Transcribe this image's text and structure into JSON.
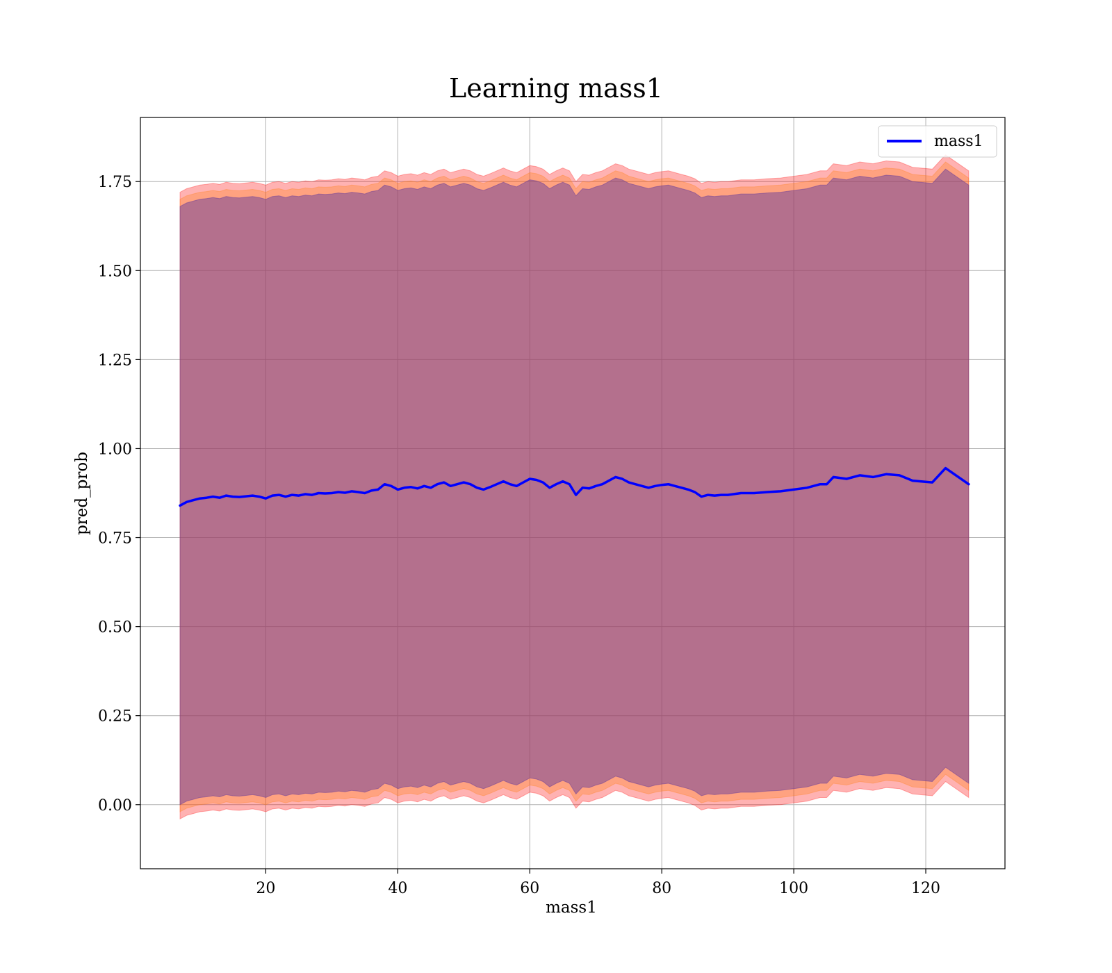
{
  "chart_data": {
    "type": "line",
    "title": "Learning mass1",
    "xlabel": "mass1",
    "ylabel": "pred_prob",
    "xlim": [
      1,
      132
    ],
    "ylim": [
      -0.18,
      1.93
    ],
    "xticks": [
      20,
      40,
      60,
      80,
      100,
      120
    ],
    "yticks": [
      0.0,
      0.25,
      0.5,
      0.75,
      1.0,
      1.25,
      1.5,
      1.75
    ],
    "grid": true,
    "legend": {
      "position": "top-right",
      "entries": [
        "mass1"
      ]
    },
    "series": [
      {
        "name": "mass1",
        "color": "#0000ff",
        "x": [
          7,
          8,
          9,
          10,
          11,
          12,
          13,
          14,
          15,
          16,
          17,
          18,
          19,
          20,
          21,
          22,
          23,
          24,
          25,
          26,
          27,
          28,
          29,
          30,
          31,
          32,
          33,
          34,
          35,
          36,
          37,
          38,
          39,
          40,
          41,
          42,
          43,
          44,
          45,
          46,
          47,
          48,
          49,
          50,
          51,
          52,
          53,
          54,
          55,
          56,
          57,
          58,
          59,
          60,
          61,
          62,
          63,
          64,
          65,
          66,
          67,
          68,
          69,
          70,
          71,
          72,
          73,
          74,
          75,
          76,
          77,
          78,
          79,
          80,
          81,
          82,
          83,
          84,
          85,
          86,
          87,
          88,
          89,
          90,
          92,
          94,
          96,
          98,
          100,
          102,
          104,
          105,
          106,
          108,
          110,
          112,
          114,
          116,
          118,
          121,
          123,
          126.5
        ],
        "y": [
          0.84,
          0.85,
          0.855,
          0.86,
          0.862,
          0.865,
          0.862,
          0.868,
          0.865,
          0.864,
          0.866,
          0.868,
          0.865,
          0.86,
          0.868,
          0.87,
          0.865,
          0.87,
          0.868,
          0.872,
          0.87,
          0.875,
          0.874,
          0.875,
          0.878,
          0.876,
          0.88,
          0.878,
          0.875,
          0.882,
          0.885,
          0.9,
          0.895,
          0.885,
          0.89,
          0.892,
          0.888,
          0.895,
          0.89,
          0.9,
          0.905,
          0.895,
          0.9,
          0.905,
          0.9,
          0.89,
          0.885,
          0.892,
          0.9,
          0.908,
          0.9,
          0.895,
          0.905,
          0.915,
          0.912,
          0.905,
          0.89,
          0.9,
          0.908,
          0.9,
          0.87,
          0.89,
          0.888,
          0.895,
          0.9,
          0.91,
          0.92,
          0.915,
          0.905,
          0.9,
          0.895,
          0.89,
          0.895,
          0.898,
          0.9,
          0.895,
          0.89,
          0.885,
          0.878,
          0.865,
          0.87,
          0.868,
          0.87,
          0.87,
          0.875,
          0.875,
          0.878,
          0.88,
          0.885,
          0.89,
          0.9,
          0.9,
          0.92,
          0.915,
          0.925,
          0.92,
          0.928,
          0.925,
          0.91,
          0.905,
          0.945,
          0.9
        ]
      }
    ],
    "bands": [
      {
        "color": "#ff0000",
        "opacity": 0.3,
        "offset_lower": 0.88,
        "offset_upper": 0.88
      },
      {
        "color": "#ff7f0e",
        "opacity": 0.3,
        "offset_lower": 0.86,
        "offset_upper": 0.86
      },
      {
        "color": "#6a3d9a",
        "opacity": 0.5,
        "offset_lower": 0.84,
        "offset_upper": 0.84
      }
    ]
  }
}
